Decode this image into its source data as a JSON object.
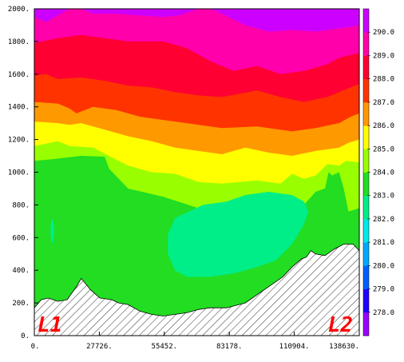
{
  "chart_data": {
    "type": "heatmap",
    "subtype": "vertical cross-section contour (filled)",
    "x_ticks": [
      "0.",
      "27726.",
      "55452.",
      "83178.",
      "110904.",
      "138630."
    ],
    "x_tick_values": [
      0,
      27726,
      55452,
      83178,
      110904,
      138630
    ],
    "y_ticks": [
      "0.",
      "200.",
      "400.",
      "600.",
      "800.",
      "1000.",
      "1200.",
      "1400.",
      "1600.",
      "1800.",
      "2000."
    ],
    "y_tick_values": [
      0,
      200,
      400,
      600,
      800,
      1000,
      1200,
      1400,
      1600,
      1800,
      2000
    ],
    "xlim": [
      0,
      138630
    ],
    "ylim": [
      0,
      2000
    ],
    "grid": false,
    "colorbar": {
      "position": "right",
      "labels": [
        "278.0",
        "279.0",
        "280.0",
        "281.0",
        "282.0",
        "283.0",
        "284.0",
        "285.0",
        "286.0",
        "287.0",
        "288.0",
        "289.0",
        "290.0"
      ],
      "levels": [
        278,
        279,
        280,
        281,
        282,
        283,
        284,
        285,
        286,
        287,
        288,
        289,
        290
      ],
      "colors": [
        "#9a00ff",
        "#2000ff",
        "#0060ff",
        "#00a8ff",
        "#00e8e8",
        "#00ee88",
        "#22dd22",
        "#99ff00",
        "#ffff00",
        "#ff9900",
        "#ff3300",
        "#ff0033",
        "#ff00aa",
        "#cc00ff"
      ]
    },
    "bands": [
      {
        "level_above": 283,
        "color": "#22dd22",
        "upper_edge": [
          [
            0,
            1070
          ],
          [
            8000,
            1080
          ],
          [
            20000,
            1100
          ],
          [
            30000,
            1095
          ],
          [
            32000,
            1020
          ],
          [
            40000,
            900
          ],
          [
            55000,
            850
          ],
          [
            70000,
            780
          ],
          [
            83000,
            810
          ],
          [
            95000,
            870
          ],
          [
            103000,
            840
          ],
          [
            110000,
            830
          ],
          [
            115000,
            800
          ],
          [
            120000,
            880
          ],
          [
            124000,
            900
          ],
          [
            125500,
            1000
          ],
          [
            127000,
            980
          ],
          [
            130000,
            1000
          ],
          [
            132000,
            900
          ],
          [
            134000,
            760
          ],
          [
            138630,
            780
          ]
        ]
      },
      {
        "level_above": 284,
        "color": "#99ff00",
        "upper_edge": [
          [
            0,
            1160
          ],
          [
            5000,
            1175
          ],
          [
            10000,
            1190
          ],
          [
            15000,
            1160
          ],
          [
            25000,
            1150
          ],
          [
            40000,
            1040
          ],
          [
            50000,
            1000
          ],
          [
            60000,
            990
          ],
          [
            70000,
            940
          ],
          [
            80000,
            930
          ],
          [
            95000,
            950
          ],
          [
            105000,
            930
          ],
          [
            110000,
            990
          ],
          [
            115000,
            960
          ],
          [
            120000,
            980
          ],
          [
            125000,
            1050
          ],
          [
            130000,
            1040
          ],
          [
            133000,
            1070
          ],
          [
            138630,
            1060
          ]
        ]
      },
      {
        "level_above": 285,
        "color": "#ffff00",
        "upper_edge": [
          [
            0,
            1310
          ],
          [
            10000,
            1300
          ],
          [
            15000,
            1290
          ],
          [
            20000,
            1300
          ],
          [
            30000,
            1260
          ],
          [
            40000,
            1220
          ],
          [
            50000,
            1190
          ],
          [
            60000,
            1150
          ],
          [
            70000,
            1130
          ],
          [
            80000,
            1110
          ],
          [
            90000,
            1150
          ],
          [
            100000,
            1120
          ],
          [
            110000,
            1100
          ],
          [
            120000,
            1130
          ],
          [
            130000,
            1150
          ],
          [
            134000,
            1180
          ],
          [
            138630,
            1200
          ]
        ]
      },
      {
        "level_above": 286,
        "color": "#ff9900",
        "upper_edge": [
          [
            0,
            1430
          ],
          [
            10000,
            1420
          ],
          [
            15000,
            1390
          ],
          [
            18000,
            1360
          ],
          [
            25000,
            1400
          ],
          [
            35000,
            1380
          ],
          [
            45000,
            1340
          ],
          [
            55000,
            1320
          ],
          [
            65000,
            1300
          ],
          [
            80000,
            1270
          ],
          [
            95000,
            1280
          ],
          [
            110000,
            1250
          ],
          [
            120000,
            1270
          ],
          [
            130000,
            1300
          ],
          [
            135000,
            1340
          ],
          [
            138630,
            1360
          ]
        ]
      },
      {
        "level_above": 287,
        "color": "#ff3300",
        "upper_edge": [
          [
            0,
            1590
          ],
          [
            5000,
            1600
          ],
          [
            10000,
            1570
          ],
          [
            20000,
            1580
          ],
          [
            30000,
            1560
          ],
          [
            40000,
            1530
          ],
          [
            50000,
            1520
          ],
          [
            60000,
            1490
          ],
          [
            70000,
            1470
          ],
          [
            80000,
            1460
          ],
          [
            95000,
            1500
          ],
          [
            105000,
            1460
          ],
          [
            115000,
            1430
          ],
          [
            125000,
            1460
          ],
          [
            135000,
            1520
          ],
          [
            138630,
            1540
          ]
        ]
      },
      {
        "level_above": 288,
        "color": "#ff0033",
        "upper_edge": [
          [
            0,
            1790
          ],
          [
            10000,
            1820
          ],
          [
            20000,
            1840
          ],
          [
            30000,
            1820
          ],
          [
            40000,
            1800
          ],
          [
            55000,
            1800
          ],
          [
            65000,
            1760
          ],
          [
            75000,
            1680
          ],
          [
            85000,
            1620
          ],
          [
            95000,
            1650
          ],
          [
            105000,
            1600
          ],
          [
            115000,
            1620
          ],
          [
            125000,
            1660
          ],
          [
            130000,
            1700
          ],
          [
            138630,
            1730
          ]
        ]
      },
      {
        "level_above": 289,
        "color": "#ff00aa",
        "upper_edge": [
          [
            0,
            1950
          ],
          [
            5000,
            1920
          ],
          [
            10000,
            1960
          ],
          [
            15000,
            2000
          ],
          [
            20000,
            2000
          ],
          [
            25000,
            1970
          ],
          [
            35000,
            1970
          ],
          [
            45000,
            1960
          ],
          [
            55000,
            1950
          ],
          [
            62000,
            1960
          ],
          [
            70000,
            2000
          ],
          [
            75000,
            2000
          ],
          [
            80000,
            1970
          ],
          [
            90000,
            1900
          ],
          [
            100000,
            1860
          ],
          [
            110000,
            1870
          ],
          [
            120000,
            1860
          ],
          [
            130000,
            1880
          ],
          [
            135000,
            1890
          ],
          [
            138630,
            1900
          ]
        ]
      }
    ],
    "blob_282": [
      [
        57000,
        620
      ],
      [
        60000,
        720
      ],
      [
        66000,
        760
      ],
      [
        72000,
        800
      ],
      [
        82000,
        820
      ],
      [
        90000,
        860
      ],
      [
        100000,
        880
      ],
      [
        110000,
        860
      ],
      [
        115000,
        820
      ],
      [
        117000,
        760
      ],
      [
        115000,
        680
      ],
      [
        110000,
        560
      ],
      [
        103000,
        460
      ],
      [
        95000,
        420
      ],
      [
        85000,
        380
      ],
      [
        75000,
        360
      ],
      [
        65000,
        360
      ],
      [
        60000,
        400
      ],
      [
        57000,
        500
      ]
    ],
    "sliver_282": [
      [
        7000,
        680
      ],
      [
        7900,
        720
      ],
      [
        8500,
        650
      ],
      [
        8200,
        580
      ],
      [
        7500,
        560
      ],
      [
        6900,
        620
      ]
    ],
    "terrain": [
      [
        0,
        170
      ],
      [
        3000,
        220
      ],
      [
        6000,
        230
      ],
      [
        10000,
        210
      ],
      [
        14000,
        220
      ],
      [
        18000,
        300
      ],
      [
        20000,
        350
      ],
      [
        24000,
        280
      ],
      [
        28000,
        230
      ],
      [
        33000,
        220
      ],
      [
        36000,
        200
      ],
      [
        40000,
        190
      ],
      [
        45000,
        150
      ],
      [
        50000,
        130
      ],
      [
        55000,
        120
      ],
      [
        60000,
        130
      ],
      [
        65000,
        140
      ],
      [
        70000,
        160
      ],
      [
        75000,
        170
      ],
      [
        82000,
        170
      ],
      [
        90000,
        200
      ],
      [
        96000,
        260
      ],
      [
        102000,
        320
      ],
      [
        106000,
        360
      ],
      [
        110000,
        420
      ],
      [
        114000,
        470
      ],
      [
        116000,
        480
      ],
      [
        118000,
        520
      ],
      [
        120000,
        500
      ],
      [
        124000,
        490
      ],
      [
        128000,
        530
      ],
      [
        132000,
        560
      ],
      [
        136000,
        560
      ],
      [
        138630,
        520
      ]
    ],
    "terrain_style": "diagonal hatching",
    "annotations": [
      {
        "text": "L1",
        "position": "bottom-left",
        "color": "#ff0000"
      },
      {
        "text": "L2",
        "position": "bottom-right",
        "color": "#ff0000"
      }
    ]
  }
}
